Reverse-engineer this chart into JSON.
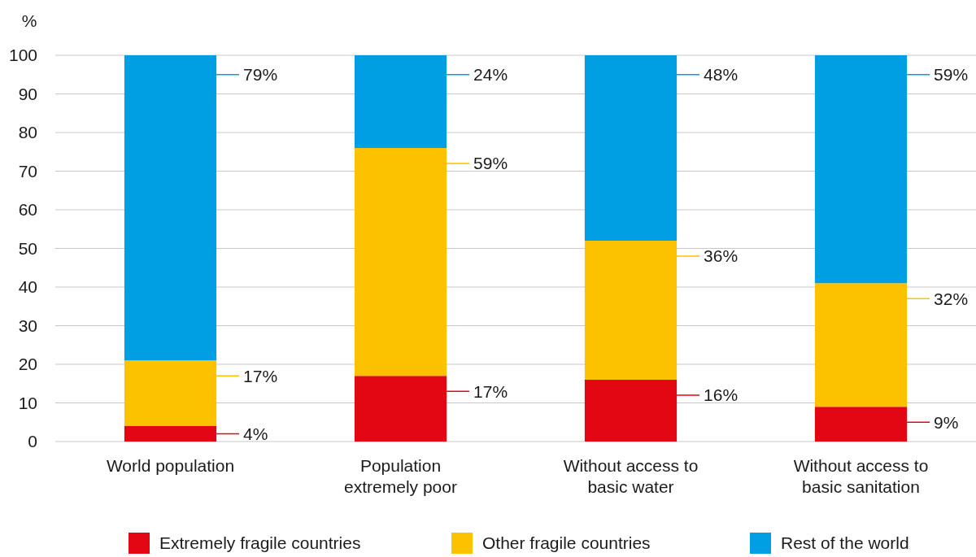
{
  "chart_data": {
    "type": "bar",
    "stacked": true,
    "ylabel": "%",
    "categories": [
      "World population",
      "Population extremely poor",
      "Without access to basic water",
      "Without access to basic sanitation"
    ],
    "series": [
      {
        "name": "Extremely fragile countries",
        "color": "#e30613",
        "values": [
          4,
          17,
          16,
          9
        ],
        "value_labels": [
          "4%",
          "17%",
          "16%",
          "9%"
        ]
      },
      {
        "name": "Other fragile countries",
        "color": "#fcc200",
        "values": [
          17,
          59,
          36,
          32
        ],
        "value_labels": [
          "17%",
          "59%",
          "36%",
          "32%"
        ]
      },
      {
        "name": "Rest of the world",
        "color": "#009fe3",
        "values": [
          79,
          24,
          48,
          59
        ],
        "value_labels": [
          "79%",
          "24%",
          "48%",
          "59%"
        ]
      }
    ],
    "ylim": [
      0,
      100
    ],
    "yticks": [
      0,
      10,
      20,
      30,
      40,
      50,
      60,
      70,
      80,
      90,
      100
    ],
    "grid": "y",
    "legend": "bottom"
  }
}
